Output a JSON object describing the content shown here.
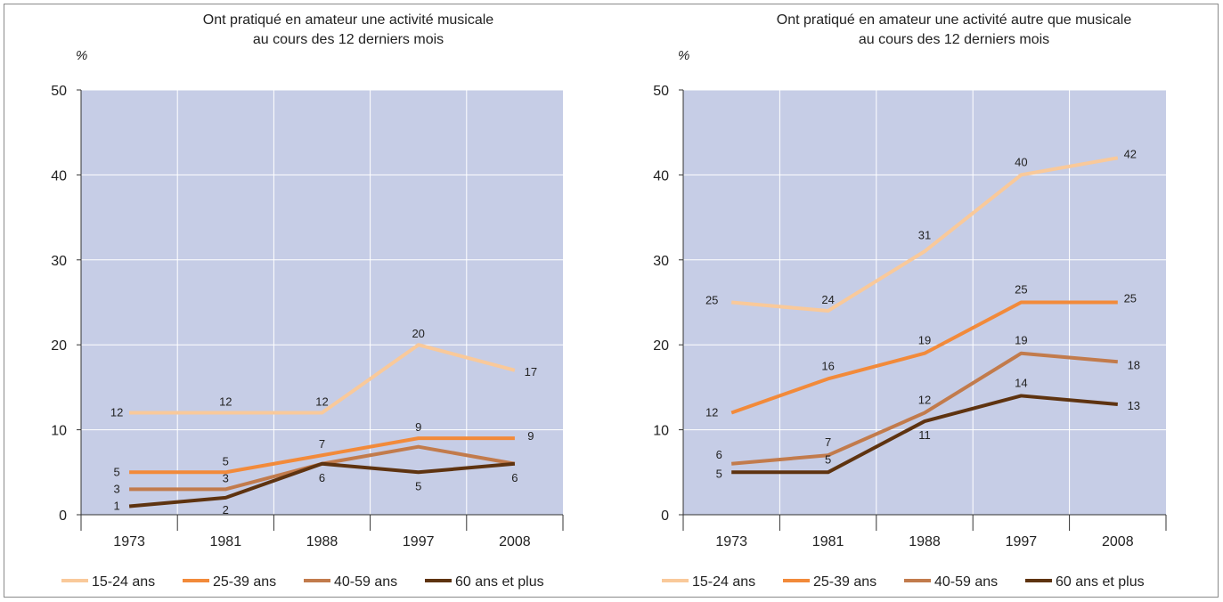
{
  "chart_data": [
    {
      "type": "line",
      "title_lines": [
        "Ont pratiqué en amateur une activité musicale",
        "au cours des 12 derniers mois"
      ],
      "unit": "%",
      "categories": [
        "1973",
        "1981",
        "1988",
        "1997",
        "2008"
      ],
      "ylim": [
        0,
        50
      ],
      "yticks": [
        0,
        10,
        20,
        30,
        40,
        50
      ],
      "grid": true,
      "legend_position": "bottom",
      "series": [
        {
          "name": "15-24 ans",
          "color": "#f9c99a",
          "values": [
            12,
            12,
            12,
            20,
            17
          ]
        },
        {
          "name": "25-39 ans",
          "color": "#f28a3a",
          "values": [
            5,
            5,
            7,
            9,
            9
          ]
        },
        {
          "name": "40-59 ans",
          "color": "#c27b4c",
          "values": [
            3,
            3,
            6,
            8,
            6
          ]
        },
        {
          "name": "60 ans et plus",
          "color": "#5e3310",
          "values": [
            1,
            2,
            6,
            5,
            6
          ]
        }
      ]
    },
    {
      "type": "line",
      "title_lines": [
        "Ont pratiqué en amateur une activité autre que musicale",
        "au cours des 12 derniers mois"
      ],
      "unit": "%",
      "categories": [
        "1973",
        "1981",
        "1988",
        "1997",
        "2008"
      ],
      "ylim": [
        0,
        50
      ],
      "yticks": [
        0,
        10,
        20,
        30,
        40,
        50
      ],
      "grid": true,
      "legend_position": "bottom",
      "series": [
        {
          "name": "15-24 ans",
          "color": "#f9c99a",
          "values": [
            25,
            24,
            31,
            40,
            42
          ]
        },
        {
          "name": "25-39 ans",
          "color": "#f28a3a",
          "values": [
            12,
            16,
            19,
            25,
            25
          ]
        },
        {
          "name": "40-59 ans",
          "color": "#c27b4c",
          "values": [
            6,
            7,
            12,
            19,
            18
          ]
        },
        {
          "name": "60 ans et plus",
          "color": "#5e3310",
          "values": [
            5,
            5,
            11,
            14,
            13
          ]
        }
      ]
    }
  ]
}
